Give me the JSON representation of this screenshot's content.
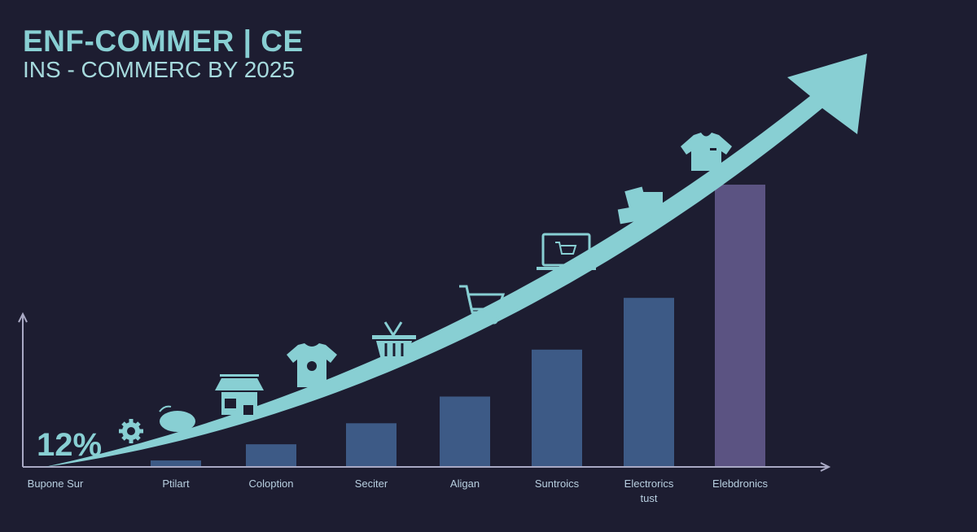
{
  "header": {
    "title": "ENF-COMMER | CE",
    "subtitle": "INS - COMMERC BY 2025"
  },
  "colors": {
    "background": "#1d1d31",
    "accent": "#88cfd3",
    "bar": "#3d5a86",
    "highlight_bar": "#5b5382",
    "axis": "#a9a9c4"
  },
  "chart_data": {
    "type": "bar",
    "title": "ENF-COMMER | CE",
    "subtitle": "INS - COMMERC BY 2025",
    "categories": [
      "Bupone Sur",
      "Ptilart",
      "Coloption",
      "Seciter",
      "Aligan",
      "Suntroics",
      "Electrorics tust",
      "Elebdronics"
    ],
    "values": [
      0,
      7,
      27,
      53,
      86,
      144,
      208,
      348
    ],
    "ylim": [
      0,
      350
    ],
    "xlabel": "",
    "ylabel": "",
    "grid": false,
    "annotations": [
      {
        "text": "12%",
        "category": "Bupone Sur"
      }
    ],
    "trend_arrow": true,
    "highlight_category": "Elebdronics",
    "icons": [
      "gear-icon",
      "purse-icon",
      "storefront-icon",
      "tshirt-icon",
      "basket-icon",
      "shopping-cart-icon",
      "laptop-cart-icon",
      "shopping-bags-icon",
      "polo-shirt-icon"
    ]
  }
}
